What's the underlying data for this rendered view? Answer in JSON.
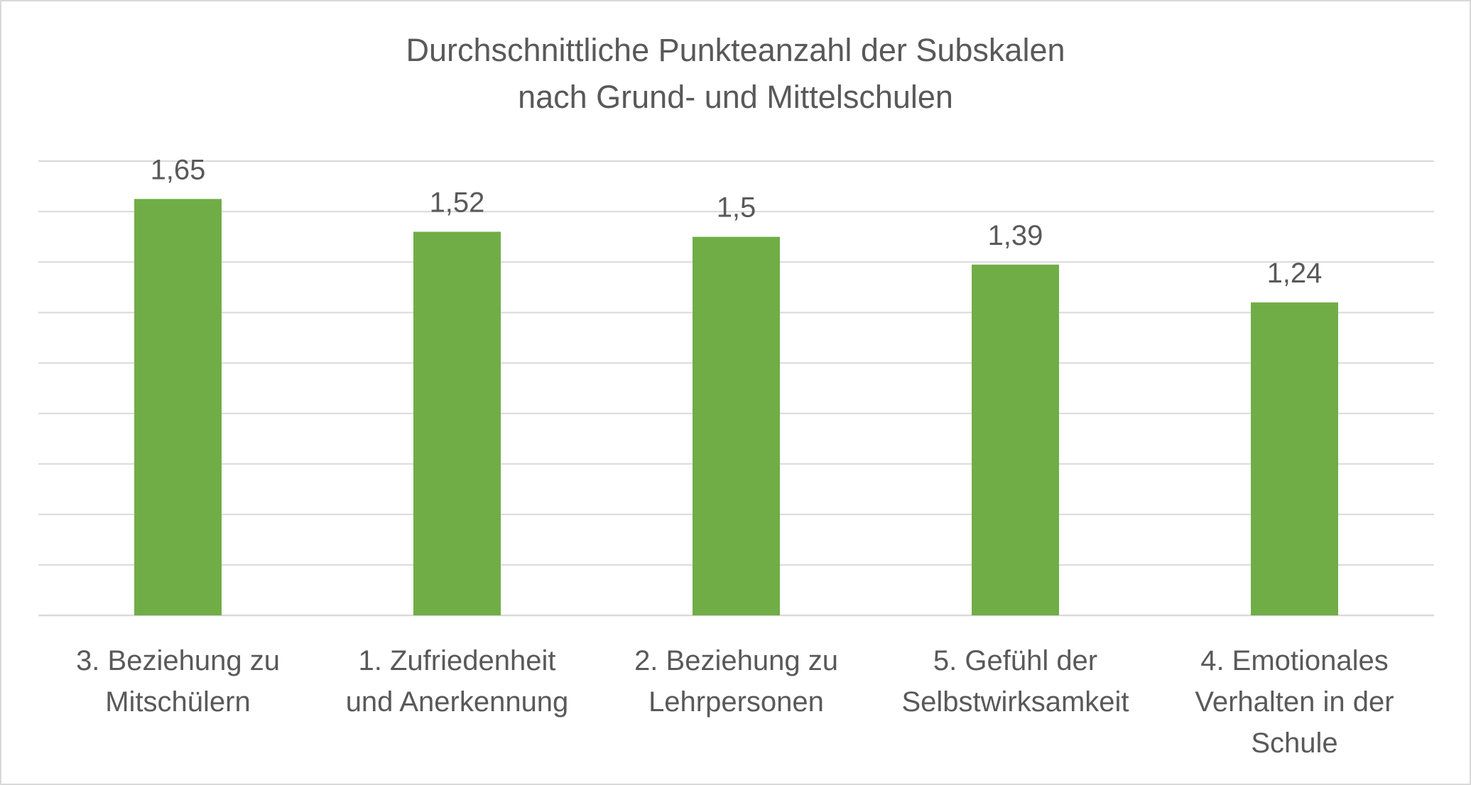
{
  "chart_data": {
    "type": "bar",
    "title_lines": [
      "Durchschnittliche Punkteanzahl der Subskalen",
      "nach Grund- und Mittelschulen"
    ],
    "categories": [
      [
        "3. Beziehung zu",
        "Mitschülern"
      ],
      [
        "1. Zufriedenheit",
        "und Anerkennung"
      ],
      [
        "2. Beziehung zu",
        "Lehrpersonen"
      ],
      [
        "5. Gefühl der",
        "Selbstwirksamkeit"
      ],
      [
        "4. Emotionales",
        "Verhalten in der",
        "Schule"
      ]
    ],
    "values": [
      1.65,
      1.52,
      1.5,
      1.39,
      1.24
    ],
    "data_labels": [
      "1,65",
      "1,52",
      "1,5",
      "1,39",
      "1,24"
    ],
    "ylim": [
      0,
      1.8
    ],
    "gridline_step": 0.2,
    "grid": true,
    "legend": "none",
    "bar_color": "#70ad47",
    "grid_color": "#d9d9d9",
    "text_color": "#595959"
  }
}
